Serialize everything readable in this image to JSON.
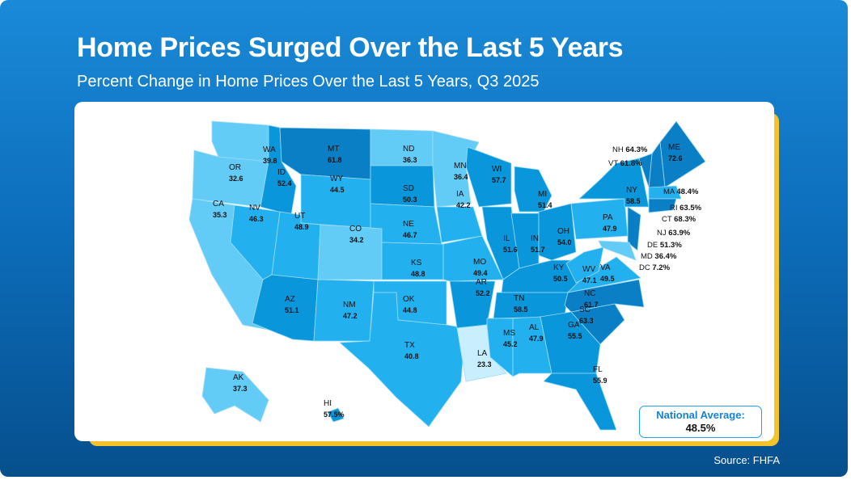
{
  "title": "Home Prices Surged Over the Last 5 Years",
  "subtitle": "Percent Change in Home Prices Over the Last 5 Years, Q3 2025",
  "national_average": {
    "label": "National Average:",
    "value": "48.5%"
  },
  "source": "Source: FHFA",
  "colors": {
    "lt30": "#c9efff",
    "30to40": "#63ccf6",
    "40to50": "#22b0ee",
    "50to60": "#0996da",
    "gt60": "#0a7fc6"
  },
  "states": [
    {
      "abbr": "WA",
      "value": "39.8"
    },
    {
      "abbr": "OR",
      "value": "32.6"
    },
    {
      "abbr": "CA",
      "value": "35.3"
    },
    {
      "abbr": "NV",
      "value": "46.3"
    },
    {
      "abbr": "ID",
      "value": "52.4"
    },
    {
      "abbr": "MT",
      "value": "61.8"
    },
    {
      "abbr": "WY",
      "value": "44.5"
    },
    {
      "abbr": "UT",
      "value": "48.9"
    },
    {
      "abbr": "CO",
      "value": "34.2"
    },
    {
      "abbr": "AZ",
      "value": "51.1"
    },
    {
      "abbr": "NM",
      "value": "47.2"
    },
    {
      "abbr": "ND",
      "value": "36.3"
    },
    {
      "abbr": "SD",
      "value": "50.3"
    },
    {
      "abbr": "NE",
      "value": "46.7"
    },
    {
      "abbr": "KS",
      "value": "48.8"
    },
    {
      "abbr": "OK",
      "value": "44.8"
    },
    {
      "abbr": "TX",
      "value": "40.8"
    },
    {
      "abbr": "MN",
      "value": "36.4"
    },
    {
      "abbr": "IA",
      "value": "42.2"
    },
    {
      "abbr": "MO",
      "value": "49.4"
    },
    {
      "abbr": "AR",
      "value": "52.2"
    },
    {
      "abbr": "LA",
      "value": "23.3"
    },
    {
      "abbr": "WI",
      "value": "57.7"
    },
    {
      "abbr": "IL",
      "value": "51.6"
    },
    {
      "abbr": "MI",
      "value": "51.4"
    },
    {
      "abbr": "IN",
      "value": "51.7"
    },
    {
      "abbr": "OH",
      "value": "54.0"
    },
    {
      "abbr": "KY",
      "value": "50.5"
    },
    {
      "abbr": "TN",
      "value": "58.5"
    },
    {
      "abbr": "MS",
      "value": "45.2"
    },
    {
      "abbr": "AL",
      "value": "47.9"
    },
    {
      "abbr": "GA",
      "value": "55.5"
    },
    {
      "abbr": "FL",
      "value": "55.9"
    },
    {
      "abbr": "SC",
      "value": "63.3"
    },
    {
      "abbr": "NC",
      "value": "61.7"
    },
    {
      "abbr": "VA",
      "value": "49.5"
    },
    {
      "abbr": "WV",
      "value": "47.1"
    },
    {
      "abbr": "PA",
      "value": "47.9"
    },
    {
      "abbr": "NY",
      "value": "58.5"
    },
    {
      "abbr": "ME",
      "value": "72.6"
    },
    {
      "abbr": "AK",
      "value": "37.3"
    },
    {
      "abbr": "HI",
      "value": "57.5%"
    },
    {
      "abbr": "NH",
      "value": "64.3%"
    },
    {
      "abbr": "VT",
      "value": "61.8%"
    },
    {
      "abbr": "MA",
      "value": "48.4%"
    },
    {
      "abbr": "RI",
      "value": "63.5%"
    },
    {
      "abbr": "CT",
      "value": "68.3%"
    },
    {
      "abbr": "NJ",
      "value": "63.9%"
    },
    {
      "abbr": "DE",
      "value": "51.3%"
    },
    {
      "abbr": "MD",
      "value": "36.4%"
    },
    {
      "abbr": "DC",
      "value": "7.2%"
    }
  ]
}
